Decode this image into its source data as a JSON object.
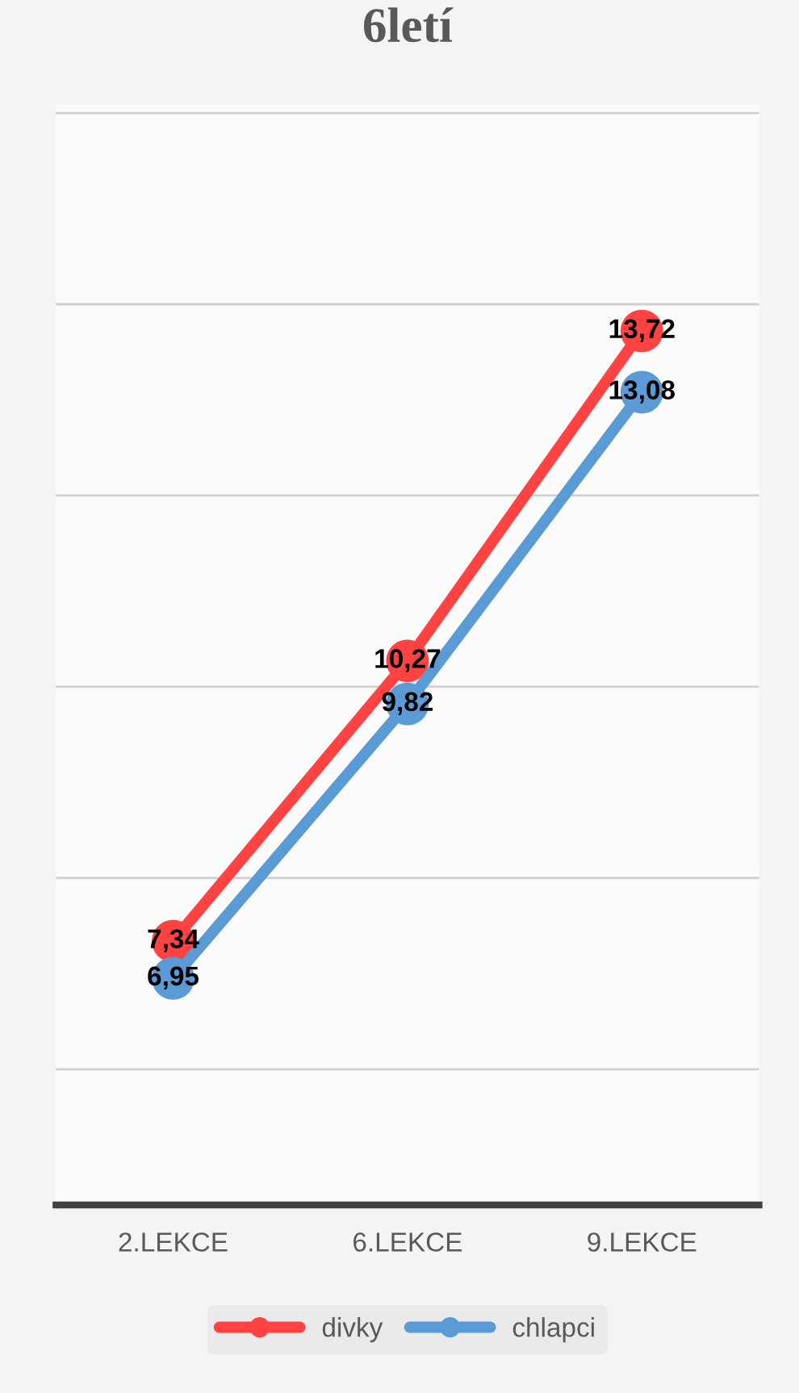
{
  "chart_data": {
    "type": "line",
    "title": "6letí",
    "categories": [
      "2.LEKCE",
      "6.LEKCE",
      "9.LEKCE"
    ],
    "series": [
      {
        "name": "divky",
        "color": "#ff4343",
        "values": [
          7.34,
          10.27,
          13.72
        ],
        "value_labels": [
          "7,34",
          "10,27",
          "13,72"
        ]
      },
      {
        "name": "chlapci",
        "color": "#5b9bd5",
        "values": [
          6.95,
          9.82,
          13.08
        ],
        "value_labels": [
          "6,95",
          "9,82",
          "13,08"
        ]
      }
    ],
    "tick_labels": "x",
    "grid": "y",
    "legend": "bottom",
    "marker": "circle",
    "line_style": "solid"
  }
}
